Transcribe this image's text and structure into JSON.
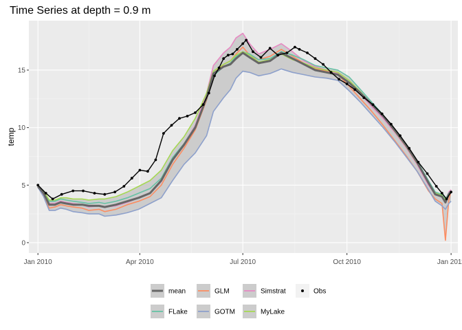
{
  "chart_data": {
    "type": "line",
    "title": "Time Series at depth = 0.9 m",
    "xlabel": "",
    "ylabel": "temp",
    "xlim": [
      "2009-12-24",
      "2011-01-07"
    ],
    "ylim": [
      -0.9,
      19.3
    ],
    "x_ticks": [
      {
        "date": "2010-01-01",
        "label": "Jan 2010"
      },
      {
        "date": "2010-04-01",
        "label": "Apr 2010"
      },
      {
        "date": "2010-07-01",
        "label": "Jul 2010"
      },
      {
        "date": "2010-10-01",
        "label": "Oct 2010"
      },
      {
        "date": "2011-01-01",
        "label": "Jan 2011"
      }
    ],
    "y_ticks": [
      0,
      5,
      10,
      15
    ],
    "grid": true,
    "legend_position": "bottom",
    "legend": [
      "mean",
      "GLM",
      "Simstrat",
      "Obs",
      "FLake",
      "GOTM",
      "MyLake"
    ],
    "dates": [
      "2010-01-01",
      "2010-01-06",
      "2010-01-11",
      "2010-01-16",
      "2010-01-21",
      "2010-01-26",
      "2010-02-01",
      "2010-02-09",
      "2010-02-15",
      "2010-02-24",
      "2010-03-01",
      "2010-03-11",
      "2010-03-21",
      "2010-03-31",
      "2010-04-10",
      "2010-04-20",
      "2010-04-30",
      "2010-05-10",
      "2010-05-20",
      "2010-05-30",
      "2010-06-05",
      "2010-06-14",
      "2010-06-20",
      "2010-06-25",
      "2010-07-01",
      "2010-07-07",
      "2010-07-15",
      "2010-07-25",
      "2010-08-04",
      "2010-08-14",
      "2010-08-24",
      "2010-09-03",
      "2010-09-13",
      "2010-09-23",
      "2010-10-03",
      "2010-10-13",
      "2010-10-23",
      "2010-11-02",
      "2010-11-12",
      "2010-11-22",
      "2010-12-02",
      "2010-12-12",
      "2010-12-18",
      "2010-12-24",
      "2010-12-27",
      "2010-12-30",
      "2011-01-01"
    ],
    "series": [
      {
        "name": "mean",
        "color": "#666666",
        "values": [
          4.9,
          4.3,
          3.3,
          3.3,
          3.5,
          3.4,
          3.3,
          3.3,
          3.2,
          3.2,
          3.1,
          3.3,
          3.6,
          3.9,
          4.3,
          5.4,
          7.2,
          8.5,
          10.0,
          12.6,
          14.7,
          15.3,
          15.5,
          16.0,
          16.5,
          16.1,
          15.6,
          15.8,
          16.5,
          16.0,
          15.5,
          15.0,
          14.8,
          14.6,
          13.9,
          13.0,
          12.0,
          11.0,
          9.8,
          8.5,
          7.0,
          5.2,
          4.2,
          4.0,
          3.5,
          4.2,
          4.4
        ]
      },
      {
        "name": "GLM",
        "color": "#FC8D62",
        "values": [
          4.8,
          4.1,
          3.0,
          3.1,
          3.3,
          3.2,
          3.1,
          3.0,
          2.8,
          2.9,
          2.7,
          2.9,
          3.3,
          3.6,
          4.0,
          5.0,
          6.8,
          8.2,
          9.8,
          12.4,
          14.7,
          15.5,
          15.8,
          16.4,
          17.0,
          16.3,
          15.9,
          16.2,
          16.8,
          16.2,
          15.6,
          15.1,
          14.9,
          14.6,
          13.6,
          12.5,
          11.4,
          10.2,
          8.9,
          7.6,
          6.2,
          4.5,
          3.8,
          3.4,
          0.2,
          3.7,
          4.5
        ]
      },
      {
        "name": "Simstrat",
        "color": "#E78AC3",
        "values": [
          4.9,
          4.4,
          3.4,
          3.4,
          3.6,
          3.5,
          3.4,
          3.3,
          3.1,
          3.2,
          3.1,
          3.2,
          3.5,
          3.9,
          4.3,
          5.3,
          7.2,
          8.6,
          10.2,
          13.0,
          15.4,
          16.5,
          17.0,
          17.8,
          18.2,
          17.3,
          16.4,
          16.8,
          17.3,
          16.6,
          15.8,
          15.3,
          15.0,
          14.7,
          13.9,
          12.9,
          11.8,
          10.8,
          9.6,
          8.3,
          6.8,
          5.0,
          4.2,
          4.0,
          3.6,
          4.4,
          4.6
        ]
      },
      {
        "name": "FLake",
        "color": "#66C2A5",
        "values": [
          4.9,
          4.5,
          3.6,
          3.6,
          3.8,
          3.7,
          3.6,
          3.5,
          3.4,
          3.5,
          3.4,
          3.6,
          3.9,
          4.3,
          4.7,
          5.6,
          7.4,
          8.6,
          10.1,
          12.5,
          14.5,
          15.3,
          15.6,
          16.2,
          16.6,
          16.4,
          15.9,
          16.0,
          16.6,
          16.3,
          15.9,
          15.4,
          15.2,
          15.0,
          14.4,
          13.3,
          12.2,
          11.1,
          9.8,
          8.6,
          7.1,
          5.4,
          4.4,
          4.2,
          3.8,
          4.3,
          4.5
        ]
      },
      {
        "name": "GOTM",
        "color": "#8DA0CB",
        "values": [
          4.8,
          4.0,
          2.8,
          2.8,
          3.0,
          2.9,
          2.7,
          2.6,
          2.5,
          2.5,
          2.3,
          2.4,
          2.6,
          2.9,
          3.4,
          3.9,
          5.4,
          6.8,
          7.8,
          9.3,
          11.4,
          12.6,
          13.3,
          14.3,
          14.9,
          14.8,
          14.5,
          14.7,
          15.1,
          14.8,
          14.6,
          14.4,
          14.3,
          14.1,
          13.2,
          12.2,
          11.1,
          10.0,
          8.8,
          7.5,
          6.2,
          4.6,
          3.6,
          3.2,
          2.9,
          3.4,
          3.6
        ]
      },
      {
        "name": "MyLake",
        "color": "#A6D854",
        "values": [
          4.9,
          4.5,
          3.7,
          3.7,
          3.9,
          3.9,
          3.8,
          3.8,
          3.7,
          3.8,
          3.8,
          4.0,
          4.4,
          4.9,
          5.4,
          6.3,
          8.0,
          9.2,
          10.8,
          13.0,
          14.9,
          15.5,
          15.8,
          16.3,
          16.6,
          16.3,
          15.7,
          15.9,
          16.4,
          15.9,
          15.6,
          15.2,
          15.0,
          14.8,
          14.1,
          13.1,
          12.0,
          11.0,
          9.7,
          8.4,
          6.9,
          5.2,
          4.3,
          4.1,
          3.7,
          4.2,
          4.4
        ]
      }
    ],
    "ribbon": {
      "name": "mean",
      "color": "#CCCCCC",
      "lower": "min of models",
      "upper": "max of models"
    },
    "obs": {
      "name": "Obs",
      "color": "#000000",
      "dates": [
        "2010-01-01",
        "2010-01-08",
        "2010-01-14",
        "2010-01-22",
        "2010-02-01",
        "2010-02-10",
        "2010-02-20",
        "2010-03-01",
        "2010-03-10",
        "2010-03-18",
        "2010-03-25",
        "2010-04-01",
        "2010-04-08",
        "2010-04-15",
        "2010-04-22",
        "2010-04-29",
        "2010-05-06",
        "2010-05-13",
        "2010-05-20",
        "2010-05-27",
        "2010-06-01",
        "2010-06-06",
        "2010-06-10",
        "2010-06-14",
        "2010-06-18",
        "2010-06-22",
        "2010-06-26",
        "2010-07-01",
        "2010-07-04",
        "2010-07-10",
        "2010-07-17",
        "2010-07-25",
        "2010-08-01",
        "2010-08-09",
        "2010-08-16",
        "2010-08-20",
        "2010-08-27",
        "2010-09-03",
        "2010-09-10",
        "2010-09-17",
        "2010-09-24",
        "2010-10-01",
        "2010-10-08",
        "2010-10-16",
        "2010-10-24",
        "2010-11-01",
        "2010-11-09",
        "2010-11-17",
        "2010-11-25",
        "2010-12-03",
        "2010-12-11",
        "2010-12-19",
        "2010-12-24",
        "2010-12-28",
        "2011-01-01"
      ],
      "values": [
        5.0,
        4.3,
        3.8,
        4.2,
        4.5,
        4.5,
        4.3,
        4.2,
        4.4,
        4.9,
        5.6,
        6.3,
        6.2,
        7.2,
        9.5,
        10.2,
        10.8,
        11.0,
        11.3,
        12.0,
        13.0,
        14.5,
        15.2,
        16.0,
        16.3,
        16.4,
        16.8,
        17.3,
        17.6,
        16.6,
        16.1,
        16.9,
        16.3,
        16.5,
        17.0,
        16.8,
        16.5,
        16.0,
        15.5,
        14.8,
        14.2,
        13.8,
        13.3,
        12.6,
        12.0,
        11.2,
        10.3,
        9.3,
        8.2,
        7.0,
        6.0,
        4.9,
        4.3,
        3.8,
        4.4
      ]
    }
  }
}
